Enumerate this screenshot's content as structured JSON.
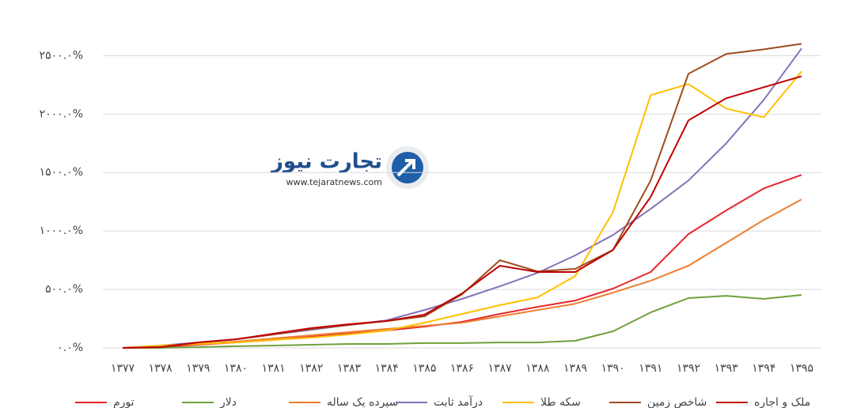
{
  "chart_data": {
    "type": "line",
    "categories": [
      "۱۳۷۷",
      "۱۳۷۸",
      "۱۳۷۹",
      "۱۳۸۰",
      "۱۳۸۱",
      "۱۳۸۲",
      "۱۳۸۳",
      "۱۳۸۴",
      "۱۳۸۵",
      "۱۳۸۶",
      "۱۳۸۷",
      "۱۳۸۸",
      "۱۳۸۹",
      "۱۳۹۰",
      "۱۳۹۱",
      "۱۳۹۲",
      "۱۳۹۳",
      "۱۳۹۴",
      "۱۳۹۵"
    ],
    "series": [
      {
        "name": "تورم",
        "color": "#e8262b",
        "values": [
          0,
          7,
          27,
          47,
          68,
          95,
          122,
          149,
          182,
          223,
          291,
          351,
          405,
          507,
          649,
          973,
          1176,
          1365,
          1480
        ]
      },
      {
        "name": "دلار",
        "color": "#70a03c",
        "values": [
          0,
          0,
          7,
          14,
          20,
          27,
          34,
          34,
          41,
          41,
          47,
          47,
          61,
          142,
          304,
          426,
          446,
          419,
          453
        ]
      },
      {
        "name": "سپرده یک ساله",
        "color": "#ed7d31",
        "values": [
          0,
          14,
          34,
          54,
          81,
          108,
          135,
          162,
          189,
          216,
          270,
          324,
          378,
          473,
          574,
          703,
          899,
          1095,
          1270
        ]
      },
      {
        "name": "درآمد ثابت",
        "color": "#8472b8",
        "values": [
          0,
          20,
          47,
          74,
          115,
          155,
          196,
          236,
          324,
          419,
          527,
          642,
          791,
          966,
          1189,
          1432,
          1750,
          2122,
          2561
        ]
      },
      {
        "name": "سکه طلا",
        "color": "#ffc000",
        "values": [
          0,
          20,
          34,
          47,
          68,
          88,
          115,
          149,
          216,
          291,
          365,
          432,
          615,
          1162,
          2162,
          2257,
          2047,
          1973,
          2365
        ]
      },
      {
        "name": "شاخص زمین",
        "color": "#9e4b1e",
        "values": [
          0,
          7,
          47,
          74,
          115,
          162,
          196,
          230,
          270,
          459,
          750,
          655,
          676,
          838,
          1432,
          2345,
          2514,
          2554,
          2601
        ]
      },
      {
        "name": "ملک و اجاره",
        "color": "#c00000",
        "values": [
          0,
          7,
          47,
          74,
          122,
          169,
          203,
          230,
          284,
          466,
          703,
          649,
          649,
          838,
          1291,
          1946,
          2135,
          2230,
          2324
        ]
      }
    ],
    "ylim": [
      0,
      2800
    ],
    "yticks": [
      {
        "value": 0,
        "label": "۰.۰%"
      },
      {
        "value": 500,
        "label": "۵۰۰.۰%"
      },
      {
        "value": 1000,
        "label": "۱۰۰۰.۰%"
      },
      {
        "value": 1500,
        "label": "۱۵۰۰.۰%"
      },
      {
        "value": 2000,
        "label": "۲۰۰۰.۰%"
      },
      {
        "value": 2500,
        "label": "۲۵۰۰.۰%"
      }
    ],
    "grid": true,
    "legend": "bottom"
  },
  "watermark": {
    "title": "تجارت نیوز",
    "url": "www.tejaratnews.com"
  }
}
